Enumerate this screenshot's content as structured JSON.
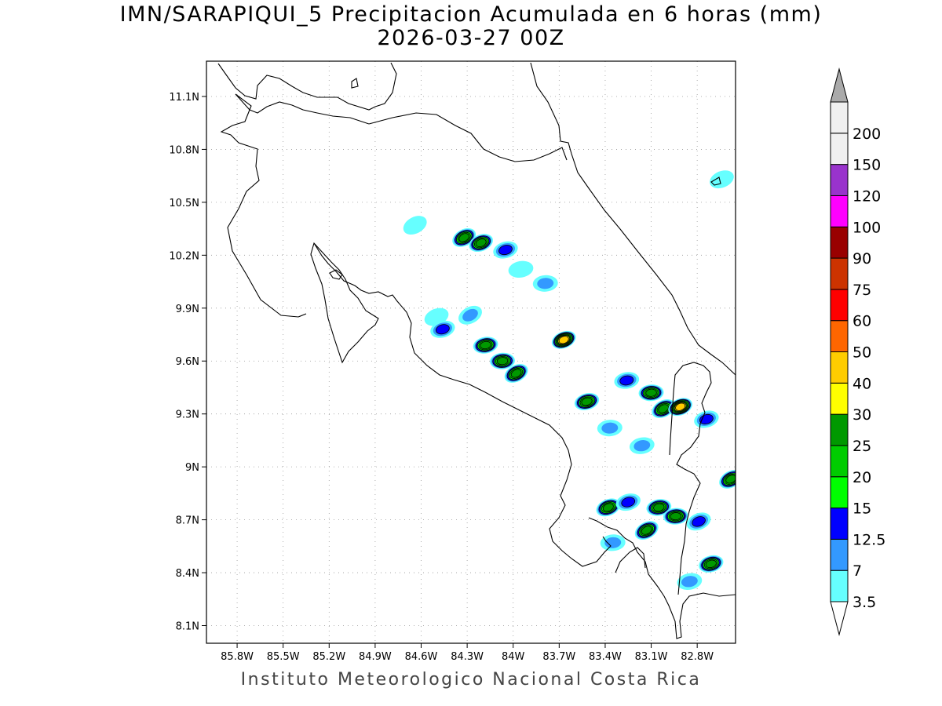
{
  "title": {
    "line1": "IMN/SARAPIQUI_5 Precipitacion Acumulada en 6 horas (mm)",
    "line2": "2026-03-27 00Z"
  },
  "footer": "Instituto Meteorologico Nacional Costa Rica",
  "map": {
    "lon_range": [
      -86.0,
      -82.55
    ],
    "lat_range": [
      8.0,
      11.3
    ],
    "x_ticks": [
      {
        "value": -85.8,
        "label": "85.8W"
      },
      {
        "value": -85.5,
        "label": "85.5W"
      },
      {
        "value": -85.2,
        "label": "85.2W"
      },
      {
        "value": -84.9,
        "label": "84.9W"
      },
      {
        "value": -84.6,
        "label": "84.6W"
      },
      {
        "value": -84.3,
        "label": "84.3W"
      },
      {
        "value": -84.0,
        "label": "84W"
      },
      {
        "value": -83.7,
        "label": "83.7W"
      },
      {
        "value": -83.4,
        "label": "83.4W"
      },
      {
        "value": -83.1,
        "label": "83.1W"
      },
      {
        "value": -82.8,
        "label": "82.8W"
      }
    ],
    "y_ticks": [
      {
        "value": 11.1,
        "label": "11.1N"
      },
      {
        "value": 10.8,
        "label": "10.8N"
      },
      {
        "value": 10.5,
        "label": "10.5N"
      },
      {
        "value": 10.2,
        "label": "10.2N"
      },
      {
        "value": 9.9,
        "label": "9.9N"
      },
      {
        "value": 9.6,
        "label": "9.6N"
      },
      {
        "value": 9.3,
        "label": "9.3N"
      },
      {
        "value": 9.0,
        "label": "9N"
      },
      {
        "value": 8.7,
        "label": "8.7N"
      },
      {
        "value": 8.4,
        "label": "8.4N"
      },
      {
        "value": 8.1,
        "label": "8.1N"
      }
    ],
    "gridlines": "dotted"
  },
  "legend": {
    "levels": [
      {
        "label": "3.5",
        "color": "#66ffff"
      },
      {
        "label": "7",
        "color": "#3399ff"
      },
      {
        "label": "12.5",
        "color": "#0000ff"
      },
      {
        "label": "15",
        "color": "#00ff00"
      },
      {
        "label": "20",
        "color": "#00cc00"
      },
      {
        "label": "25",
        "color": "#009900"
      },
      {
        "label": "30",
        "color": "#ffff00"
      },
      {
        "label": "40",
        "color": "#ffcc00"
      },
      {
        "label": "50",
        "color": "#ff6600"
      },
      {
        "label": "60",
        "color": "#ff0000"
      },
      {
        "label": "75",
        "color": "#cc3300"
      },
      {
        "label": "90",
        "color": "#990000"
      },
      {
        "label": "100",
        "color": "#ff00ff"
      },
      {
        "label": "120",
        "color": "#9933cc"
      },
      {
        "label": "150",
        "color": "#f0f0f0"
      },
      {
        "label": "200",
        "color": "#aaaaaa"
      }
    ],
    "below_color": "#ffffff",
    "above_color": "#aaaaaa"
  },
  "rain_cells": [
    {
      "lon": -84.32,
      "lat": 10.3,
      "max": 25
    },
    {
      "lon": -84.21,
      "lat": 10.27,
      "max": 25
    },
    {
      "lon": -84.05,
      "lat": 10.23,
      "max": 12.5
    },
    {
      "lon": -83.95,
      "lat": 10.12,
      "max": 3.5
    },
    {
      "lon": -83.79,
      "lat": 10.04,
      "max": 7
    },
    {
      "lon": -84.28,
      "lat": 9.86,
      "max": 7
    },
    {
      "lon": -84.5,
      "lat": 9.85,
      "max": 3.5
    },
    {
      "lon": -84.46,
      "lat": 9.78,
      "max": 12.5
    },
    {
      "lon": -84.18,
      "lat": 9.69,
      "max": 25
    },
    {
      "lon": -84.07,
      "lat": 9.6,
      "max": 25
    },
    {
      "lon": -83.98,
      "lat": 9.53,
      "max": 25
    },
    {
      "lon": -83.67,
      "lat": 9.72,
      "max": 40
    },
    {
      "lon": -83.52,
      "lat": 9.37,
      "max": 25
    },
    {
      "lon": -83.26,
      "lat": 9.49,
      "max": 12.5
    },
    {
      "lon": -83.1,
      "lat": 9.42,
      "max": 25
    },
    {
      "lon": -83.02,
      "lat": 9.33,
      "max": 25
    },
    {
      "lon": -82.91,
      "lat": 9.34,
      "max": 40
    },
    {
      "lon": -82.74,
      "lat": 9.27,
      "max": 12.5
    },
    {
      "lon": -83.16,
      "lat": 9.12,
      "max": 7
    },
    {
      "lon": -83.37,
      "lat": 9.22,
      "max": 7
    },
    {
      "lon": -82.58,
      "lat": 8.93,
      "max": 25
    },
    {
      "lon": -83.38,
      "lat": 8.77,
      "max": 25
    },
    {
      "lon": -83.25,
      "lat": 8.8,
      "max": 12.5
    },
    {
      "lon": -83.05,
      "lat": 8.77,
      "max": 25
    },
    {
      "lon": -82.94,
      "lat": 8.72,
      "max": 25
    },
    {
      "lon": -83.13,
      "lat": 8.64,
      "max": 25
    },
    {
      "lon": -82.79,
      "lat": 8.69,
      "max": 12.5
    },
    {
      "lon": -82.71,
      "lat": 8.45,
      "max": 25
    },
    {
      "lon": -82.85,
      "lat": 8.35,
      "max": 7
    },
    {
      "lon": -83.35,
      "lat": 8.57,
      "max": 7
    },
    {
      "lon": -84.64,
      "lat": 10.37,
      "max": 3.5
    },
    {
      "lon": -82.64,
      "lat": 10.63,
      "max": 3.5
    }
  ]
}
